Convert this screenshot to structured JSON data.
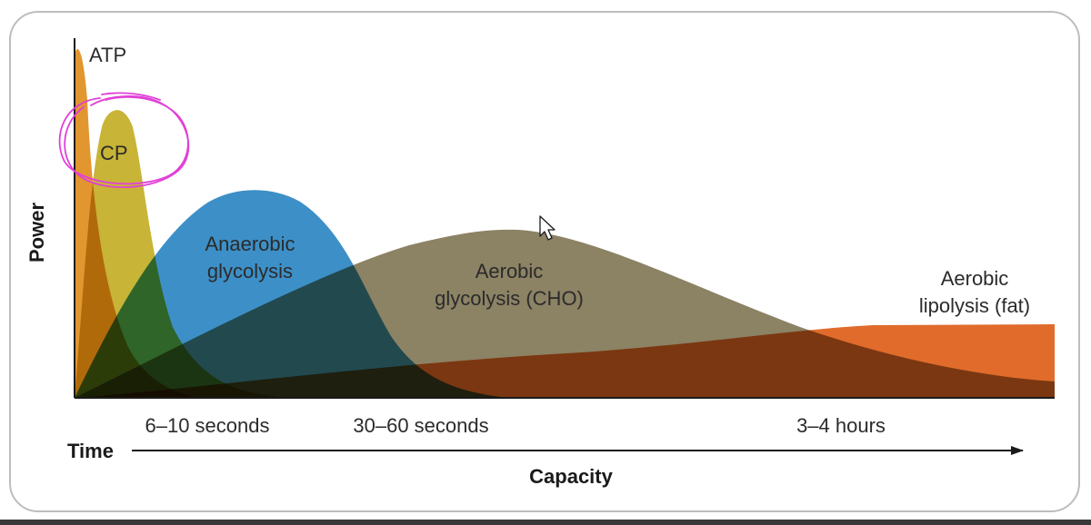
{
  "axes": {
    "y_label": "Power",
    "x_time_label": "Time",
    "x_capacity_label": "Capacity"
  },
  "time_marks": {
    "short": "6–10 seconds",
    "medium": "30–60 seconds",
    "long": "3–4 hours"
  },
  "systems": {
    "atp": {
      "label": "ATP",
      "color": "#e2962f"
    },
    "cp": {
      "label": "CP",
      "color": "#c8b436"
    },
    "anaerobic": {
      "line1": "Anaerobic",
      "line2": "glycolysis",
      "color": "#3d8fc7"
    },
    "aerobic_cho": {
      "line1": "Aerobic",
      "line2": "glycolysis (CHO)",
      "color": "#8c8264"
    },
    "aerobic_fat": {
      "line1": "Aerobic",
      "line2": "lipolysis (fat)",
      "color": "#e06b2b"
    }
  },
  "annotation": {
    "color": "#e040d8"
  }
}
